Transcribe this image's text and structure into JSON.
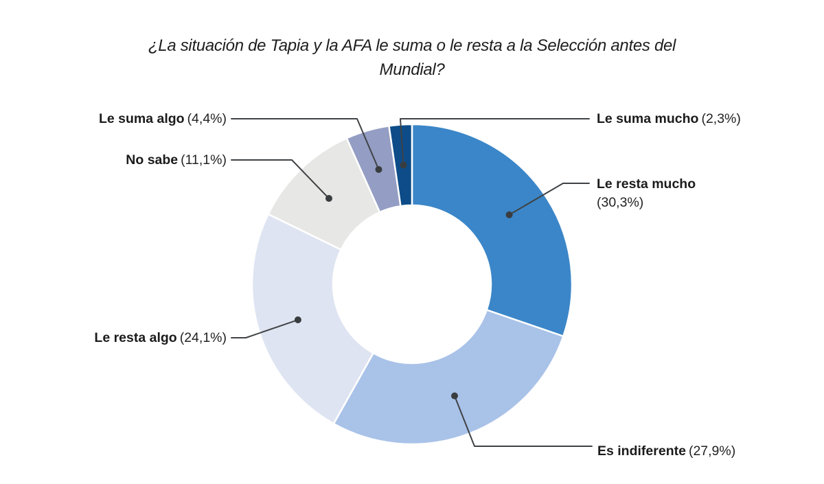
{
  "chart_data": {
    "type": "donut",
    "title": "¿La situación de Tapia y la AFA le suma o le resta a la Selección antes del Mundial?",
    "title_lines": [
      "¿La situación de Tapia y la AFA le suma o le resta a la Selección antes del",
      "Mundial?"
    ],
    "start_angle_deg": 0,
    "direction": "clockwise",
    "inner_radius_ratio": 0.49,
    "legend_position": "callout-labels",
    "leader_line_color": "#3f4245",
    "dot_color": "#3a3d40",
    "separator_color": "#ffffff",
    "text_color": "#1b1b1b",
    "segments": [
      {
        "label": "Le resta mucho",
        "pct": "(30,3%)",
        "value": 30.3,
        "color": "#3b86c8"
      },
      {
        "label": "Es indiferente",
        "pct": "(27,9%)",
        "value": 27.9,
        "color": "#a9c2e8"
      },
      {
        "label": "Le resta algo",
        "pct": "(24,1%)",
        "value": 24.1,
        "color": "#dfe4f2"
      },
      {
        "label": "No sabe",
        "pct": "(11,1%)",
        "value": 11.1,
        "color": "#e7e7e5"
      },
      {
        "label": "Le suma algo",
        "pct": "(4,4%)",
        "value": 4.4,
        "color": "#949dc3"
      },
      {
        "label": "Le suma mucho",
        "pct": "(2,3%)",
        "value": 2.3,
        "color": "#0d4c88"
      }
    ]
  }
}
